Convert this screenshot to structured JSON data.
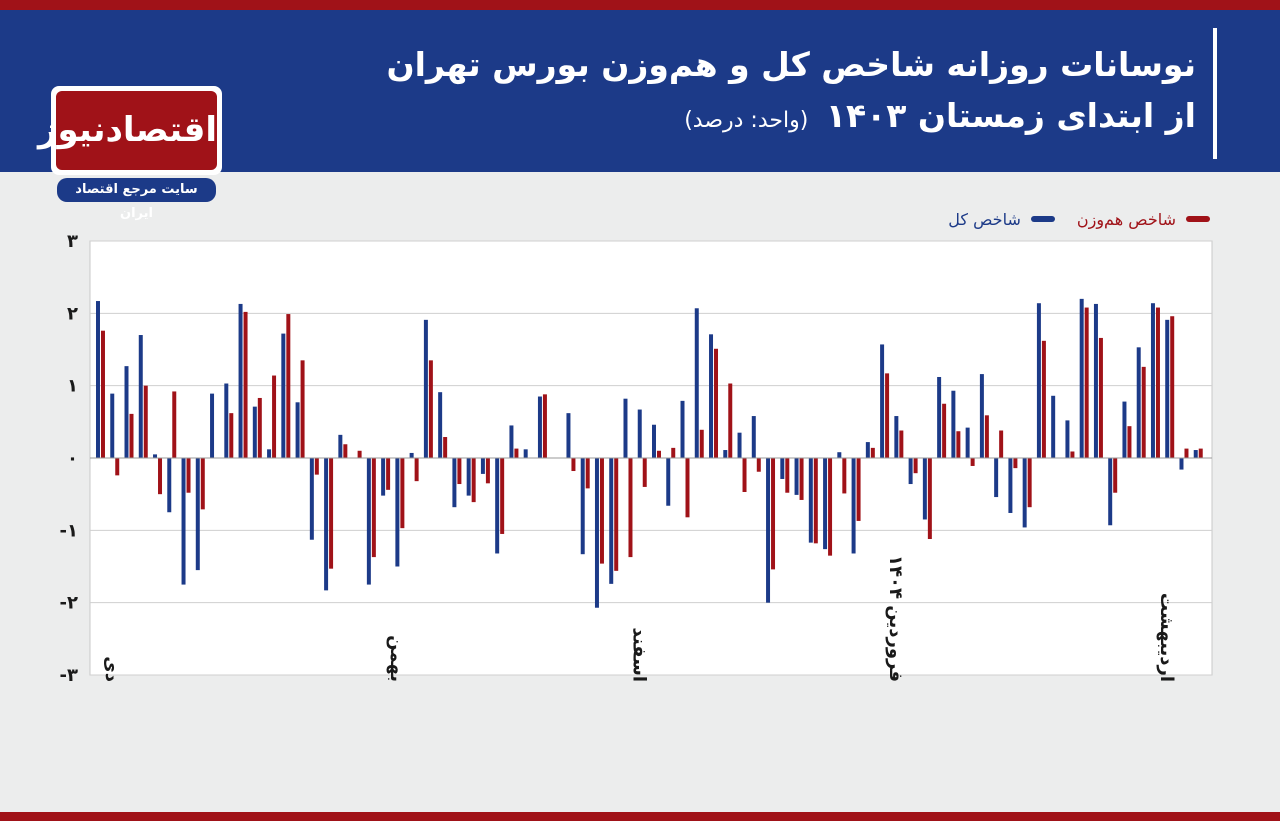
{
  "header": {
    "title_line1": "نوسانات روزانه شاخص کل و هم‌وزن بورس تهران",
    "title_line2": "از ابتدای زمستان ۱۴۰۳",
    "unit": "(واحد: درصد)"
  },
  "logo": {
    "name": "اقتصادنیوز",
    "tagline": "سایت مرجع اقتصاد ایران"
  },
  "colors": {
    "header_bg": "#1c3a88",
    "accent_red": "#a01218",
    "total_index": "#1c3a88",
    "equal_weight": "#a01218"
  },
  "chart_data": {
    "type": "bar",
    "ylim": [
      -3,
      3
    ],
    "yticks": [
      3,
      2,
      1,
      0,
      -1,
      -2,
      -3
    ],
    "ytick_labels": [
      "۳",
      "۲",
      "۱",
      "۰",
      "-۱",
      "-۲",
      "-۳"
    ],
    "grid": true,
    "legend_position": "top-right",
    "month_labels": [
      "دی",
      "بهمن",
      "اسفند",
      "فروردین ۱۴۰۴",
      "اردیبهشت"
    ],
    "month_label_day_index": [
      0,
      20,
      37,
      55,
      74
    ],
    "series": [
      {
        "name": "شاخص کل",
        "color": "#1c3a88",
        "values": [
          2.17,
          0.89,
          1.27,
          1.7,
          0.05,
          -0.75,
          -1.75,
          -1.55,
          0.89,
          1.03,
          2.13,
          0.71,
          0.12,
          1.72,
          0.77,
          -1.13,
          -1.83,
          0.32,
          0.0,
          -1.75,
          -0.52,
          -1.5,
          0.07,
          1.91,
          0.91,
          -0.68,
          -0.52,
          -0.22,
          -1.32,
          0.45,
          0.12,
          0.85,
          0.0,
          0.62,
          -1.33,
          -2.07,
          -1.74,
          0.82,
          0.67,
          0.46,
          -0.66,
          0.79,
          2.07,
          1.71,
          0.11,
          0.35,
          0.58,
          -2.0,
          -0.29,
          -0.51,
          -1.17,
          -1.26,
          0.08,
          -1.32,
          0.22,
          1.57,
          0.58,
          -0.36,
          -0.85,
          1.12,
          0.93,
          0.42,
          1.16,
          -0.54,
          -0.76,
          -0.96,
          2.14,
          0.86,
          0.52,
          2.2,
          2.13,
          -0.93,
          0.78,
          1.53,
          2.14,
          1.91,
          -0.16,
          0.11
        ]
      },
      {
        "name": "شاخص هم‌وزن",
        "color": "#a01218",
        "values": [
          1.76,
          -0.24,
          0.61,
          1.0,
          -0.5,
          0.92,
          -0.48,
          -0.71,
          0.0,
          0.62,
          2.02,
          0.83,
          1.14,
          1.99,
          1.35,
          -0.23,
          -1.53,
          0.19,
          0.1,
          -1.37,
          -0.44,
          -0.97,
          -0.32,
          1.35,
          0.29,
          -0.36,
          -0.61,
          -0.35,
          -1.05,
          0.13,
          0.0,
          0.88,
          0.0,
          -0.18,
          -0.42,
          -1.46,
          -1.56,
          -1.37,
          -0.4,
          0.1,
          0.14,
          -0.82,
          0.39,
          1.51,
          1.03,
          -0.47,
          -0.19,
          -1.54,
          -0.48,
          -0.58,
          -1.18,
          -1.35,
          -0.49,
          -0.87,
          0.14,
          1.17,
          0.38,
          -0.21,
          -1.12,
          0.75,
          0.37,
          -0.11,
          0.59,
          0.38,
          -0.14,
          -0.68,
          1.62,
          0.0,
          0.09,
          2.08,
          1.66,
          -0.48,
          0.44,
          1.26,
          2.08,
          1.96,
          0.13,
          0.13
        ]
      }
    ]
  }
}
